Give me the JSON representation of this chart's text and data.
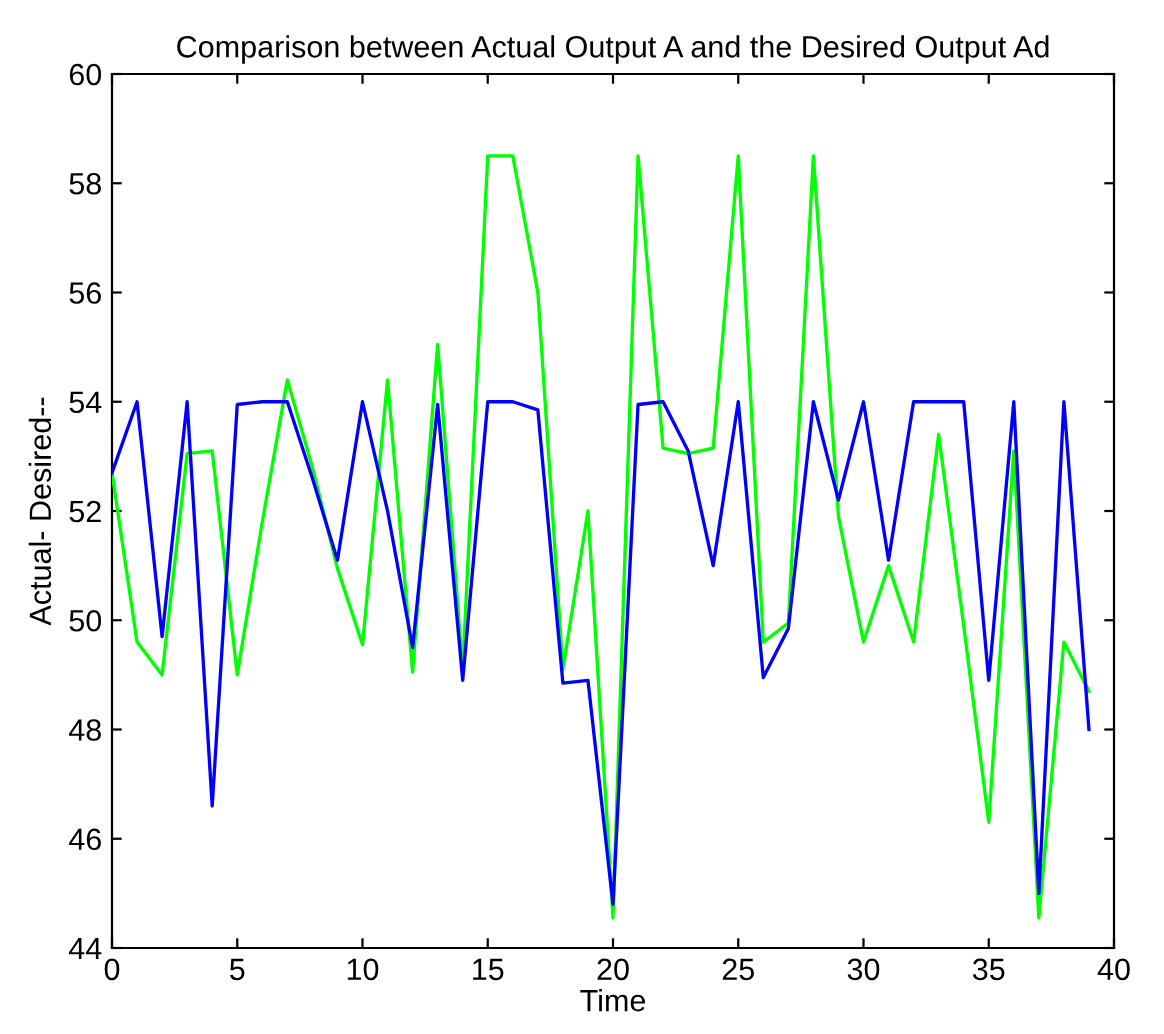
{
  "chart_data": {
    "type": "line",
    "title": "Comparison between Actual Output A and the Desired Output Ad",
    "xlabel": "Time",
    "ylabel": "Actual- Desired--",
    "x": [
      0,
      1,
      2,
      3,
      4,
      5,
      6,
      7,
      8,
      9,
      10,
      11,
      12,
      13,
      14,
      15,
      16,
      17,
      18,
      19,
      20,
      21,
      22,
      23,
      24,
      25,
      26,
      27,
      28,
      29,
      30,
      31,
      32,
      33,
      34,
      35,
      36,
      37,
      38,
      39
    ],
    "series": [
      {
        "color": "#0000ff",
        "values": [
          52.7,
          54,
          49.7,
          54,
          46.6,
          53.95,
          54,
          54,
          52.6,
          51.1,
          54,
          52.0,
          49.5,
          53.95,
          48.9,
          54,
          54,
          53.85,
          48.85,
          48.9,
          44.8,
          53.95,
          54,
          53.1,
          51,
          54,
          48.95,
          49.85,
          54,
          52.2,
          54,
          51.1,
          54,
          54,
          54,
          48.9,
          54,
          45,
          54,
          48.0
        ]
      },
      {
        "color": "#00ff00",
        "values": [
          52.7,
          49.6,
          49.0,
          53.05,
          53.1,
          49.0,
          51.8,
          54.4,
          52.8,
          50.95,
          49.55,
          54.4,
          49.05,
          55.05,
          49.1,
          58.5,
          58.5,
          56,
          49.1,
          52,
          44.55,
          58.5,
          53.15,
          53.05,
          53.15,
          58.5,
          49.6,
          49.95,
          58.5,
          51.9,
          49.6,
          51.0,
          49.6,
          53.4,
          49.9,
          46.3,
          53.1,
          44.55,
          49.6,
          48.7
        ]
      }
    ],
    "xlim": [
      0,
      40
    ],
    "xticks": [
      0,
      5,
      10,
      15,
      20,
      25,
      30,
      35,
      40
    ],
    "ylim": [
      44,
      60
    ],
    "yticks": [
      44,
      46,
      48,
      50,
      52,
      54,
      56,
      58,
      60
    ],
    "grid": false,
    "legend": false,
    "marker": "none",
    "line_style": "solid"
  }
}
